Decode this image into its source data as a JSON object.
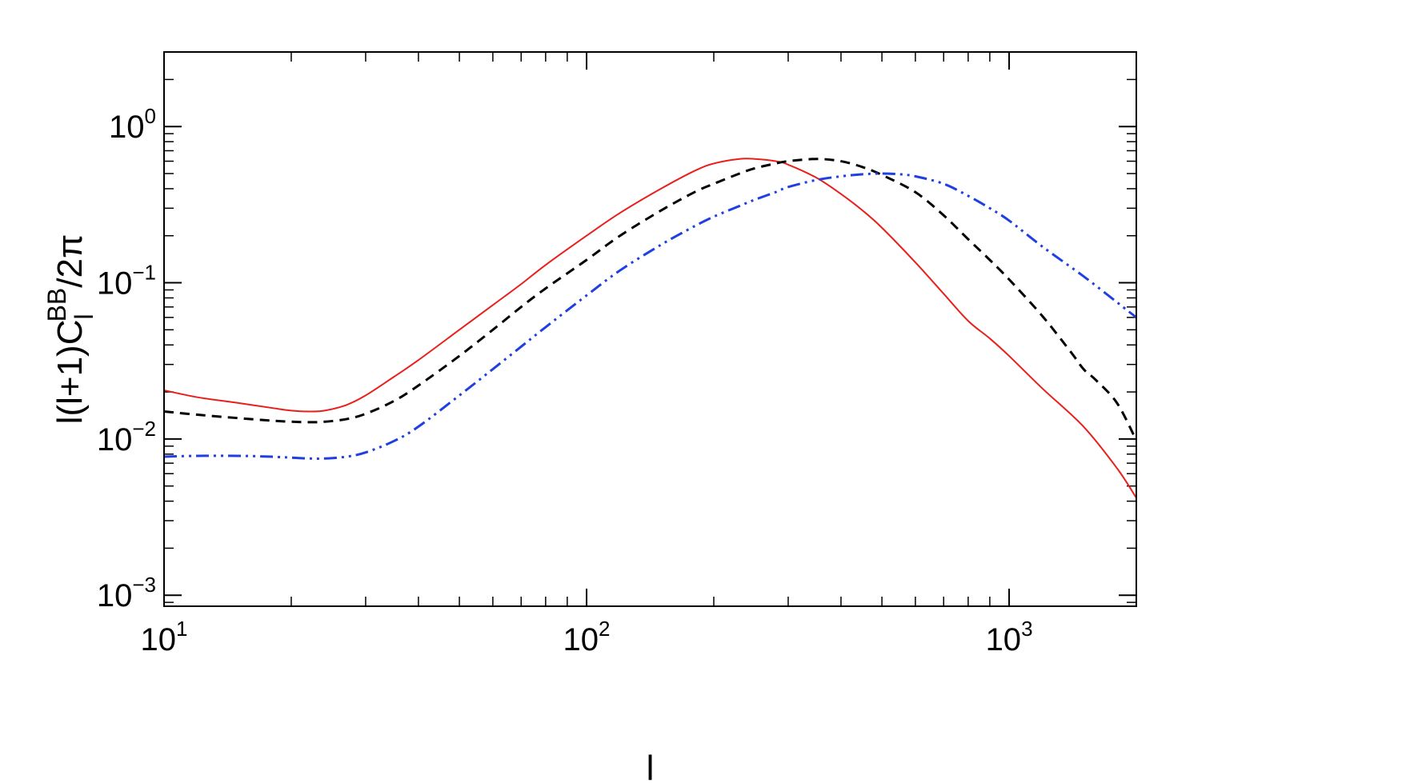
{
  "chart_data": {
    "type": "line",
    "xlabel": "l",
    "ylabel": {
      "prefix": "l(l+1)C",
      "subscript": "l",
      "superscript": "BB",
      "suffix": "/2π"
    },
    "xscale": "log",
    "yscale": "log",
    "xlim": [
      10,
      2000
    ],
    "ylim": [
      0.00085,
      3
    ],
    "x_ticks": [
      {
        "base": "10",
        "exp": "1"
      },
      {
        "base": "10",
        "exp": "2"
      },
      {
        "base": "10",
        "exp": "3"
      }
    ],
    "y_ticks": [
      {
        "base": "10",
        "exp": "−3"
      },
      {
        "base": "10",
        "exp": "−2"
      },
      {
        "base": "10",
        "exp": "−1"
      },
      {
        "base": "10",
        "exp": "0"
      }
    ],
    "grid": false,
    "series": [
      {
        "color": "#e8201c",
        "dash": "solid",
        "x": [
          10,
          12,
          15,
          18,
          20,
          22,
          24,
          27,
          30,
          35,
          40,
          50,
          60,
          70,
          80,
          100,
          120,
          150,
          180,
          200,
          230,
          250,
          280,
          300,
          350,
          400,
          450,
          500,
          600,
          700,
          800,
          900,
          1000,
          1200,
          1500,
          1800,
          2000
        ],
        "y": [
          0.0205,
          0.0185,
          0.017,
          0.0158,
          0.0152,
          0.015,
          0.0152,
          0.0165,
          0.019,
          0.025,
          0.032,
          0.05,
          0.072,
          0.098,
          0.13,
          0.2,
          0.28,
          0.4,
          0.52,
          0.58,
          0.62,
          0.62,
          0.6,
          0.57,
          0.47,
          0.37,
          0.29,
          0.225,
          0.135,
          0.085,
          0.057,
          0.044,
          0.034,
          0.021,
          0.012,
          0.0065,
          0.0042
        ]
      },
      {
        "color": "#000000",
        "dash": "dashed",
        "x": [
          10,
          12,
          15,
          18,
          20,
          22,
          24,
          27,
          30,
          35,
          40,
          50,
          60,
          70,
          80,
          100,
          120,
          150,
          180,
          200,
          230,
          250,
          280,
          300,
          350,
          400,
          450,
          500,
          600,
          700,
          800,
          900,
          1000,
          1200,
          1400,
          1500,
          1600,
          1800,
          2000
        ],
        "y": [
          0.015,
          0.0143,
          0.0136,
          0.0131,
          0.0129,
          0.0128,
          0.0129,
          0.0134,
          0.0145,
          0.0175,
          0.022,
          0.034,
          0.05,
          0.07,
          0.092,
          0.14,
          0.2,
          0.29,
          0.38,
          0.43,
          0.5,
          0.54,
          0.58,
          0.6,
          0.62,
          0.6,
          0.55,
          0.49,
          0.38,
          0.27,
          0.19,
          0.14,
          0.105,
          0.061,
          0.036,
          0.028,
          0.024,
          0.017,
          0.0098
        ]
      },
      {
        "color": "#1f3fe0",
        "dash": "dashdot",
        "x": [
          10,
          12,
          15,
          18,
          20,
          22,
          24,
          27,
          30,
          35,
          40,
          50,
          60,
          70,
          80,
          100,
          120,
          150,
          180,
          200,
          230,
          250,
          280,
          300,
          350,
          400,
          450,
          500,
          550,
          600,
          700,
          800,
          900,
          1000,
          1200,
          1500,
          1800,
          2000
        ],
        "y": [
          0.0077,
          0.0078,
          0.0078,
          0.0077,
          0.0076,
          0.0075,
          0.0075,
          0.0077,
          0.0082,
          0.0097,
          0.012,
          0.019,
          0.028,
          0.039,
          0.052,
          0.083,
          0.12,
          0.175,
          0.23,
          0.265,
          0.31,
          0.34,
          0.38,
          0.41,
          0.455,
          0.48,
          0.495,
          0.5,
          0.495,
          0.48,
          0.43,
          0.36,
          0.3,
          0.25,
          0.17,
          0.11,
          0.075,
          0.06
        ]
      }
    ]
  }
}
